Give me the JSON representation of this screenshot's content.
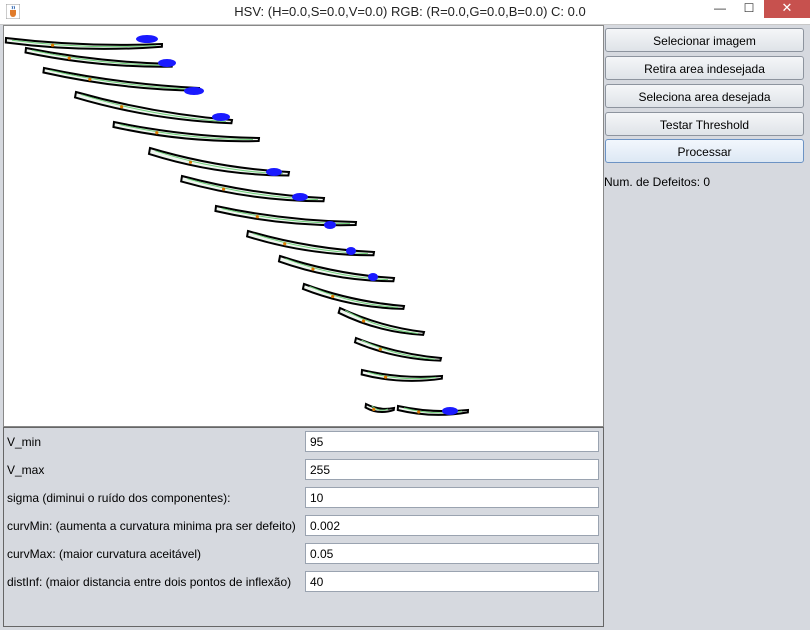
{
  "window": {
    "title": "HSV: (H=0.0,S=0.0,V=0.0) RGB: (R=0.0,G=0.0,B=0.0) C: 0.0",
    "icon": "java-cup-icon",
    "minimize_label": "—",
    "maximize_label": "☐",
    "close_label": "✕"
  },
  "image": {
    "description_icon": "segmented-components-image",
    "colors": {
      "outline": "#000000",
      "fill": "#eef5ee",
      "center_line": "#6fcf7a",
      "defect": "#1a1aff",
      "inflection": "#e07a00"
    }
  },
  "sidebar": {
    "buttons": [
      {
        "label": "Selecionar imagem"
      },
      {
        "label": "Retira area indesejada"
      },
      {
        "label": "Seleciona area desejada"
      },
      {
        "label": "Testar Threshold"
      },
      {
        "label": "Processar"
      }
    ],
    "defects_label": "Num. de Defeitos: 0"
  },
  "params": [
    {
      "label": "V_min",
      "value": "95"
    },
    {
      "label": "V_max",
      "value": "255"
    },
    {
      "label": "sigma (diminui o ruído dos componentes):",
      "value": "10"
    },
    {
      "label": "curvMin: (aumenta a curvatura minima pra ser defeito)",
      "value": "0.002"
    },
    {
      "label": "curvMax: (maior curvatura aceitável)",
      "value": "0.05"
    },
    {
      "label": "distInf: (maior distancia entre dois pontos de inflexão)",
      "value": "40"
    }
  ]
}
